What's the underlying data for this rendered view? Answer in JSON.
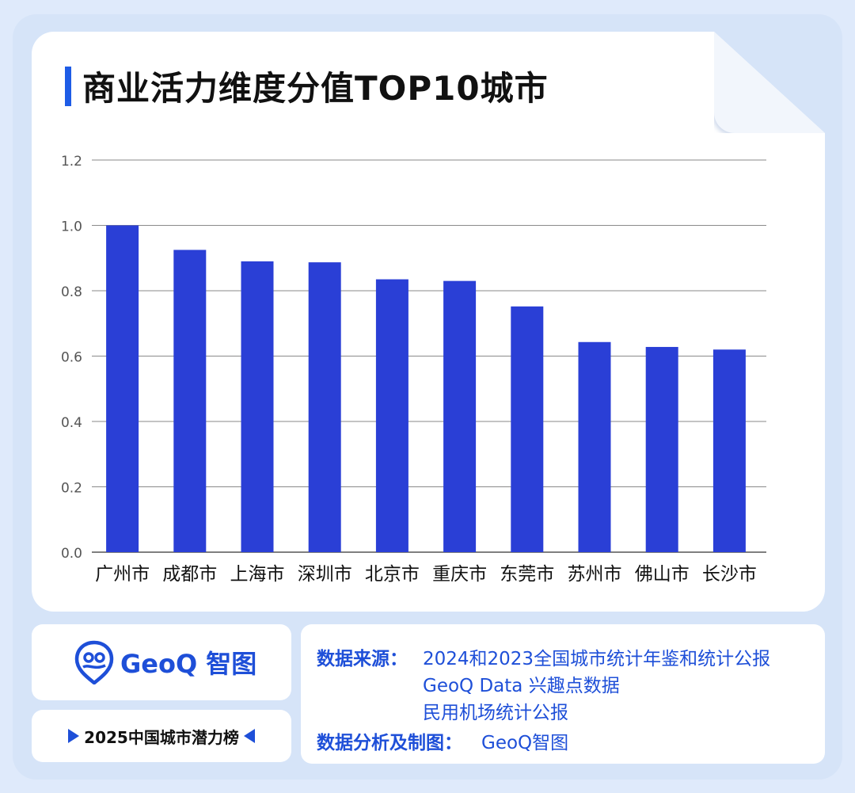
{
  "title": "商业活力维度分值TOP10城市",
  "chart_data": {
    "type": "bar",
    "categories": [
      "广州市",
      "成都市",
      "上海市",
      "深圳市",
      "北京市",
      "重庆市",
      "东莞市",
      "苏州市",
      "佛山市",
      "长沙市"
    ],
    "values": [
      1.0,
      0.925,
      0.89,
      0.887,
      0.835,
      0.83,
      0.752,
      0.643,
      0.628,
      0.62
    ],
    "yticks": [
      "0.0",
      "0.2",
      "0.4",
      "0.6",
      "0.8",
      "1.0",
      "1.2"
    ],
    "ylim": [
      0,
      1.2
    ],
    "grid": true,
    "bar_color": "#2a3fd6"
  },
  "logo": {
    "brand": "GeoQ 智图",
    "icon": "geoq-logo-icon"
  },
  "ranking_label": "2025中国城市潜力榜",
  "info": {
    "source_label": "数据来源：",
    "source_lines": [
      "2024和2023全国城市统计年鉴和统计公报",
      "GeoQ Data 兴趣点数据",
      "民用机场统计公报"
    ],
    "analysis_label": "数据分析及制图：",
    "analysis_value": "GeoQ智图"
  },
  "colors": {
    "accent": "#1e4fd8",
    "background": "#dfeafb"
  }
}
